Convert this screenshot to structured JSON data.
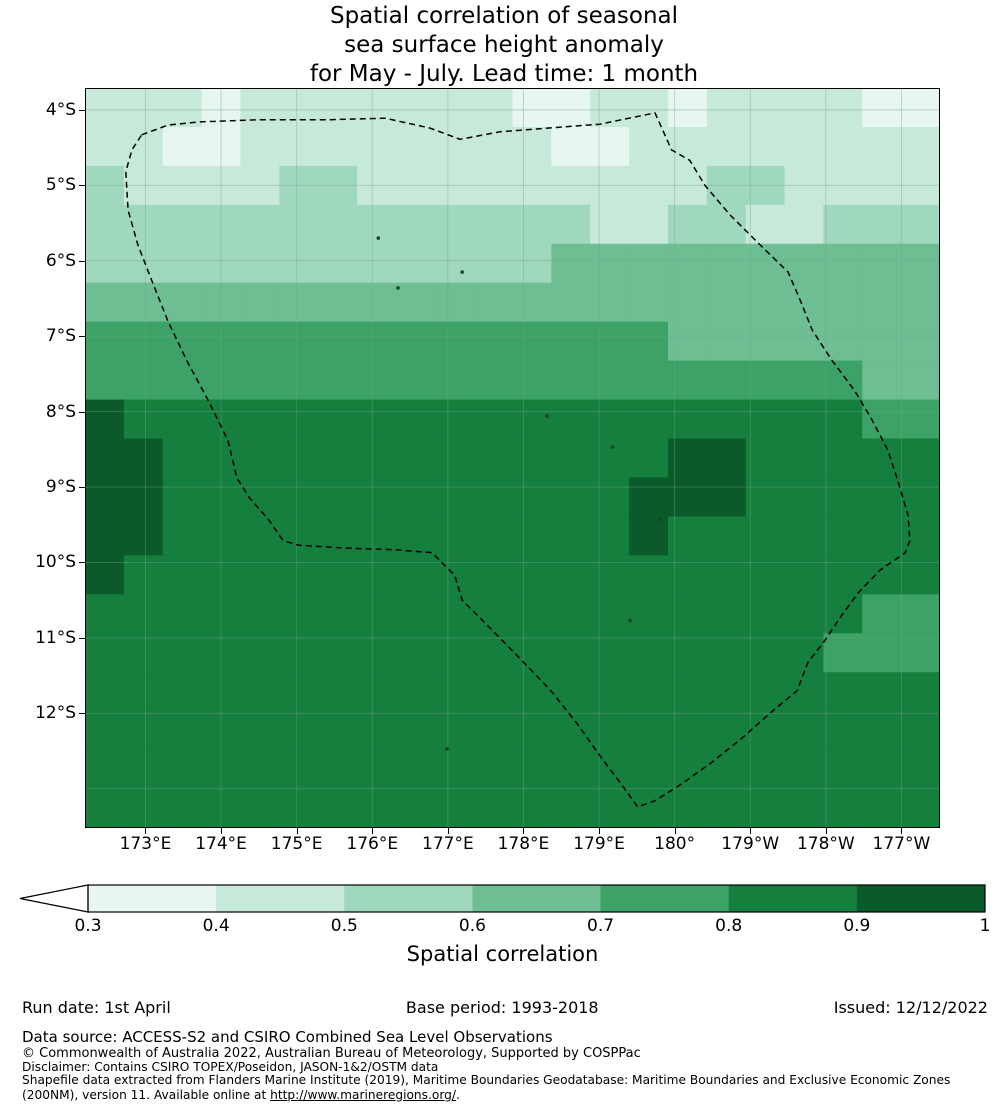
{
  "title": {
    "line1": "Spatial correlation of seasonal",
    "line2": "sea surface height anomaly",
    "line3": "for May - July. Lead time: 1 month"
  },
  "chart_data": {
    "type": "heatmap",
    "title": "Spatial correlation of seasonal sea surface height anomaly for May - July. Lead time: 1 month",
    "lon_range": [
      172.2,
      183.51
    ],
    "lat_range": [
      3.71,
      13.52
    ],
    "x_ticks": [
      {
        "lon": 173,
        "label": "173°E"
      },
      {
        "lon": 174,
        "label": "174°E"
      },
      {
        "lon": 175,
        "label": "175°E"
      },
      {
        "lon": 176,
        "label": "176°E"
      },
      {
        "lon": 177,
        "label": "177°E"
      },
      {
        "lon": 178,
        "label": "178°E"
      },
      {
        "lon": 179,
        "label": "179°E"
      },
      {
        "lon": 180,
        "label": "180°"
      },
      {
        "lon": 181,
        "label": "179°W"
      },
      {
        "lon": 182,
        "label": "178°W"
      },
      {
        "lon": 183,
        "label": "177°W"
      }
    ],
    "y_ticks": [
      {
        "lat": 4,
        "label": "4°S"
      },
      {
        "lat": 5,
        "label": "5°S"
      },
      {
        "lat": 6,
        "label": "6°S"
      },
      {
        "lat": 7,
        "label": "7°S"
      },
      {
        "lat": 8,
        "label": "8°S"
      },
      {
        "lat": 9,
        "label": "9°S"
      },
      {
        "lat": 10,
        "label": "10°S"
      },
      {
        "lat": 11,
        "label": "11°S"
      },
      {
        "lat": 12,
        "label": "12°S"
      }
    ],
    "extra_grid_lats": [
      13
    ],
    "value_bins": [
      {
        "min": 0.3,
        "max": 0.4,
        "color": "#e7f6f0"
      },
      {
        "min": 0.4,
        "max": 0.5,
        "color": "#c7e9d9"
      },
      {
        "min": 0.5,
        "max": 0.6,
        "color": "#a0d8bd"
      },
      {
        "min": 0.6,
        "max": 0.7,
        "color": "#6dbe92"
      },
      {
        "min": 0.7,
        "max": 0.8,
        "color": "#3ca266"
      },
      {
        "min": 0.8,
        "max": 0.9,
        "color": "#157f3e"
      },
      {
        "min": 0.9,
        "max": 1.01,
        "color": "#0b5a2a"
      }
    ],
    "below_min_color": "#ffffff",
    "grid": {
      "n_cols": 22,
      "n_rows": 19,
      "values": [
        [
          0.45,
          0.45,
          0.45,
          0.35,
          0.45,
          0.45,
          0.45,
          0.45,
          0.45,
          0.45,
          0.45,
          0.35,
          0.35,
          0.45,
          0.45,
          0.35,
          0.45,
          0.45,
          0.45,
          0.45,
          0.35,
          0.35
        ],
        [
          0.45,
          0.45,
          0.35,
          0.35,
          0.45,
          0.45,
          0.45,
          0.45,
          0.45,
          0.45,
          0.45,
          0.45,
          0.35,
          0.35,
          0.45,
          0.45,
          0.45,
          0.45,
          0.45,
          0.45,
          0.45,
          0.45
        ],
        [
          0.55,
          0.45,
          0.45,
          0.45,
          0.45,
          0.55,
          0.55,
          0.45,
          0.45,
          0.45,
          0.45,
          0.45,
          0.45,
          0.45,
          0.45,
          0.45,
          0.55,
          0.55,
          0.45,
          0.45,
          0.45,
          0.45
        ],
        [
          0.55,
          0.55,
          0.55,
          0.55,
          0.55,
          0.55,
          0.55,
          0.55,
          0.55,
          0.55,
          0.55,
          0.55,
          0.55,
          0.45,
          0.45,
          0.55,
          0.55,
          0.45,
          0.45,
          0.55,
          0.55,
          0.55
        ],
        [
          0.55,
          0.55,
          0.55,
          0.55,
          0.55,
          0.55,
          0.55,
          0.55,
          0.55,
          0.55,
          0.55,
          0.55,
          0.65,
          0.65,
          0.65,
          0.65,
          0.65,
          0.65,
          0.65,
          0.65,
          0.65,
          0.65
        ],
        [
          0.65,
          0.65,
          0.65,
          0.65,
          0.65,
          0.65,
          0.65,
          0.65,
          0.65,
          0.65,
          0.65,
          0.65,
          0.65,
          0.65,
          0.65,
          0.65,
          0.65,
          0.65,
          0.65,
          0.65,
          0.65,
          0.65
        ],
        [
          0.75,
          0.75,
          0.75,
          0.75,
          0.75,
          0.75,
          0.75,
          0.75,
          0.75,
          0.75,
          0.75,
          0.75,
          0.75,
          0.75,
          0.75,
          0.65,
          0.65,
          0.65,
          0.65,
          0.65,
          0.65,
          0.65
        ],
        [
          0.75,
          0.75,
          0.75,
          0.75,
          0.75,
          0.75,
          0.75,
          0.75,
          0.75,
          0.75,
          0.75,
          0.75,
          0.75,
          0.75,
          0.75,
          0.75,
          0.75,
          0.75,
          0.75,
          0.75,
          0.65,
          0.65
        ],
        [
          0.95,
          0.85,
          0.85,
          0.85,
          0.85,
          0.85,
          0.85,
          0.85,
          0.85,
          0.85,
          0.85,
          0.85,
          0.85,
          0.85,
          0.85,
          0.85,
          0.85,
          0.85,
          0.85,
          0.85,
          0.75,
          0.75
        ],
        [
          0.95,
          0.95,
          0.85,
          0.85,
          0.85,
          0.85,
          0.85,
          0.85,
          0.85,
          0.85,
          0.85,
          0.85,
          0.85,
          0.85,
          0.85,
          0.95,
          0.95,
          0.85,
          0.85,
          0.85,
          0.85,
          0.85
        ],
        [
          0.95,
          0.95,
          0.85,
          0.85,
          0.85,
          0.85,
          0.85,
          0.85,
          0.85,
          0.85,
          0.85,
          0.85,
          0.85,
          0.85,
          0.95,
          0.95,
          0.95,
          0.85,
          0.85,
          0.85,
          0.85,
          0.85
        ],
        [
          0.95,
          0.95,
          0.85,
          0.85,
          0.85,
          0.85,
          0.85,
          0.85,
          0.85,
          0.85,
          0.85,
          0.85,
          0.85,
          0.85,
          0.95,
          0.85,
          0.85,
          0.85,
          0.85,
          0.85,
          0.85,
          0.85
        ],
        [
          0.95,
          0.85,
          0.85,
          0.85,
          0.85,
          0.85,
          0.85,
          0.85,
          0.85,
          0.85,
          0.85,
          0.85,
          0.85,
          0.85,
          0.85,
          0.85,
          0.85,
          0.85,
          0.85,
          0.85,
          0.85,
          0.85
        ],
        [
          0.85,
          0.85,
          0.85,
          0.85,
          0.85,
          0.85,
          0.85,
          0.85,
          0.85,
          0.85,
          0.85,
          0.85,
          0.85,
          0.85,
          0.85,
          0.85,
          0.85,
          0.85,
          0.85,
          0.85,
          0.75,
          0.75
        ],
        [
          0.85,
          0.85,
          0.85,
          0.85,
          0.85,
          0.85,
          0.85,
          0.85,
          0.85,
          0.85,
          0.85,
          0.85,
          0.85,
          0.85,
          0.85,
          0.85,
          0.85,
          0.85,
          0.85,
          0.75,
          0.75,
          0.75
        ],
        [
          0.85,
          0.85,
          0.85,
          0.85,
          0.85,
          0.85,
          0.85,
          0.85,
          0.85,
          0.85,
          0.85,
          0.85,
          0.85,
          0.85,
          0.85,
          0.85,
          0.85,
          0.85,
          0.85,
          0.85,
          0.85,
          0.85
        ],
        [
          0.85,
          0.85,
          0.85,
          0.85,
          0.85,
          0.85,
          0.85,
          0.85,
          0.85,
          0.85,
          0.85,
          0.85,
          0.85,
          0.85,
          0.85,
          0.85,
          0.85,
          0.85,
          0.85,
          0.85,
          0.85,
          0.85
        ],
        [
          0.85,
          0.85,
          0.85,
          0.85,
          0.85,
          0.85,
          0.85,
          0.85,
          0.85,
          0.85,
          0.85,
          0.85,
          0.85,
          0.85,
          0.85,
          0.85,
          0.85,
          0.85,
          0.85,
          0.85,
          0.85,
          0.85
        ],
        [
          0.85,
          0.85,
          0.85,
          0.85,
          0.85,
          0.85,
          0.85,
          0.85,
          0.85,
          0.85,
          0.85,
          0.85,
          0.85,
          0.85,
          0.85,
          0.85,
          0.85,
          0.85,
          0.85,
          0.85,
          0.85,
          0.85
        ]
      ]
    },
    "boundary": [
      [
        172.95,
        4.33
      ],
      [
        173.3,
        4.2
      ],
      [
        173.72,
        4.16
      ],
      [
        174.51,
        4.13
      ],
      [
        175.44,
        4.13
      ],
      [
        176.17,
        4.11
      ],
      [
        176.76,
        4.24
      ],
      [
        177.16,
        4.39
      ],
      [
        177.69,
        4.29
      ],
      [
        178.48,
        4.23
      ],
      [
        179.01,
        4.19
      ],
      [
        179.74,
        4.04
      ],
      [
        179.96,
        4.53
      ],
      [
        180.2,
        4.67
      ],
      [
        180.4,
        5.0
      ],
      [
        180.73,
        5.39
      ],
      [
        181.13,
        5.79
      ],
      [
        181.5,
        6.15
      ],
      [
        181.66,
        6.52
      ],
      [
        181.82,
        6.92
      ],
      [
        182.08,
        7.32
      ],
      [
        182.38,
        7.72
      ],
      [
        182.61,
        8.11
      ],
      [
        182.82,
        8.51
      ],
      [
        182.95,
        8.91
      ],
      [
        183.09,
        9.38
      ],
      [
        183.11,
        9.71
      ],
      [
        183.05,
        9.87
      ],
      [
        182.72,
        10.1
      ],
      [
        182.43,
        10.4
      ],
      [
        182.21,
        10.7
      ],
      [
        181.99,
        11.03
      ],
      [
        181.76,
        11.33
      ],
      [
        181.62,
        11.7
      ],
      [
        181.26,
        12.0
      ],
      [
        180.89,
        12.33
      ],
      [
        180.49,
        12.65
      ],
      [
        180.1,
        12.93
      ],
      [
        179.74,
        13.16
      ],
      [
        179.51,
        13.24
      ],
      [
        179.28,
        12.92
      ],
      [
        179.01,
        12.56
      ],
      [
        178.72,
        12.15
      ],
      [
        178.38,
        11.72
      ],
      [
        177.98,
        11.3
      ],
      [
        177.56,
        10.87
      ],
      [
        177.19,
        10.5
      ],
      [
        177.09,
        10.17
      ],
      [
        176.79,
        9.87
      ],
      [
        176.3,
        9.83
      ],
      [
        175.64,
        9.81
      ],
      [
        175.02,
        9.77
      ],
      [
        174.82,
        9.71
      ],
      [
        174.62,
        9.42
      ],
      [
        174.38,
        9.15
      ],
      [
        174.21,
        8.88
      ],
      [
        174.09,
        8.38
      ],
      [
        173.83,
        7.85
      ],
      [
        173.56,
        7.35
      ],
      [
        173.3,
        6.81
      ],
      [
        173.09,
        6.28
      ],
      [
        172.9,
        5.79
      ],
      [
        172.77,
        5.33
      ],
      [
        172.74,
        4.82
      ],
      [
        172.82,
        4.53
      ]
    ],
    "islands": [
      [
        176.08,
        5.7
      ],
      [
        177.19,
        6.15
      ],
      [
        176.34,
        6.36
      ],
      [
        178.31,
        8.06
      ],
      [
        179.18,
        8.47
      ],
      [
        179.81,
        9.43
      ],
      [
        179.41,
        10.77
      ],
      [
        176.99,
        12.47
      ]
    ],
    "colorbar": {
      "ticks": [
        "0.3",
        "0.4",
        "0.5",
        "0.6",
        "0.7",
        "0.8",
        "0.9",
        "1"
      ],
      "label": "Spatial correlation"
    }
  },
  "footer": {
    "run_date": "Run date: 1st April",
    "base_period": "Base period: 1993-2018",
    "issued": "Issued: 12/12/2022",
    "data_source": "Data source: ACCESS-S2 and CSIRO Combined Sea Level Observations",
    "copyright": "© Commonwealth of Australia 2022, Australian Bureau of Meteorology, Supported by COSPPac",
    "disclaimer": "Disclaimer: Contains CSIRO TOPEX/Poseidon, JASON-1&2/OSTM data",
    "shapefile_note": "Shapefile data extracted from Flanders Marine Institute (2019), Maritime Boundaries Geodatabase: Maritime Boundaries and Exclusive Economic Zones (200NM), version 11. Available online at ",
    "shapefile_url": "http://www.marineregions.org/",
    "shapefile_suffix": "."
  }
}
